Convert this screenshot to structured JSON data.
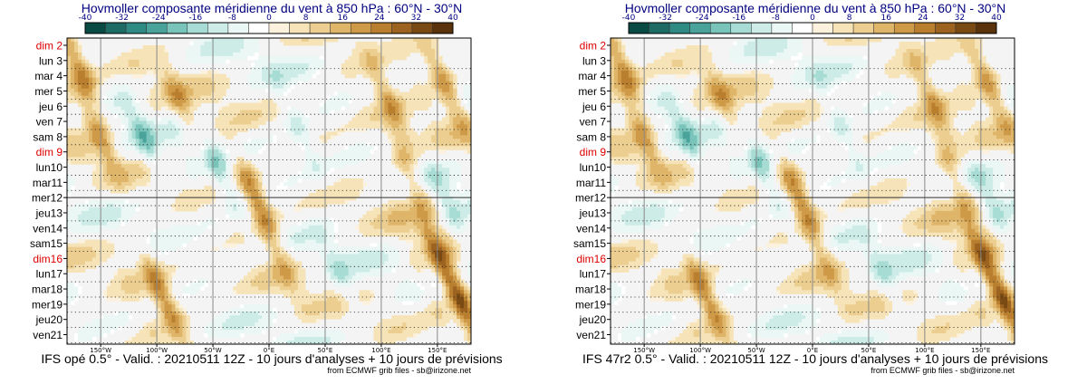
{
  "panels": [
    {
      "title": "Hovmoller composante méridienne du vent à 850 hPa : 60°N - 30°N",
      "footer": "IFS opé 0.5° - Valid. : 20210511 12Z - 10 jours d'analyses + 10 jours de prévisions",
      "credit": "from ECMWF grib files - sb@irizone.net"
    },
    {
      "title": "Hovmoller composante méridienne du vent à 850 hPa : 60°N - 30°N",
      "footer": "IFS 47r2 0.5° - Valid. : 20210511 12Z - 10 jours d'analyses + 10 jours de prévisions",
      "credit": "from ECMWF grib files - sb@irizone.net"
    }
  ],
  "chart_data": [
    {
      "type": "heatmap",
      "title": "Hovmoller composante méridienne du vent à 850 hPa : 60°N - 30°N",
      "colorbar": {
        "ticks": [
          "-40",
          "-32",
          "-24",
          "-16",
          "-8",
          "0",
          "8",
          "16",
          "24",
          "32",
          "40"
        ],
        "tick_values": [
          -40,
          -32,
          -24,
          -16,
          -8,
          0,
          8,
          16,
          24,
          32,
          40
        ],
        "colors": [
          "#0a4a44",
          "#1d6b64",
          "#2e8a82",
          "#4aa39b",
          "#78c4bb",
          "#a7dcd4",
          "#cdece7",
          "#eaf7f5",
          "#ffffff",
          "#fbf1dd",
          "#f6e3b8",
          "#eccf90",
          "#dfb56a",
          "#cf9a48",
          "#b97f2e",
          "#9c6320",
          "#7a4a15",
          "#5a330c"
        ]
      },
      "x_ticks": [
        "150°W",
        "100°W",
        "50°W",
        "0°E",
        "50°E",
        "100°E",
        "150°E"
      ],
      "x_tick_values": [
        -150,
        -100,
        -50,
        0,
        50,
        100,
        150
      ],
      "xlim": [
        -180,
        180
      ],
      "y_labels": [
        "dim 2",
        "lun 3",
        "mar 4",
        "mer 5",
        "jeu 6",
        "ven 7",
        "sam 8",
        "dim 9",
        "lun10",
        "mar11",
        "mer12",
        "jeu13",
        "ven14",
        "sam15",
        "dim16",
        "lun17",
        "mar18",
        "mer19",
        "jeu20",
        "ven21"
      ],
      "y_label_colors": [
        "#dd0000",
        "#000000",
        "#000000",
        "#000000",
        "#000000",
        "#000000",
        "#000000",
        "#dd0000",
        "#000000",
        "#000000",
        "#000000",
        "#000000",
        "#000000",
        "#000000",
        "#dd0000",
        "#000000",
        "#000000",
        "#000000",
        "#000000",
        "#000000"
      ],
      "analysis_boundary": "mer12",
      "features": [
        {
          "lon": -175,
          "day": 2,
          "dir": 1,
          "amp": 0.9
        },
        {
          "lon": -160,
          "day": 6,
          "dir": 1,
          "amp": 0.7
        },
        {
          "lon": -115,
          "day": 7,
          "dir": -1,
          "amp": 0.6
        },
        {
          "lon": -100,
          "day": 17,
          "dir": 1,
          "amp": 1.0
        },
        {
          "lon": -80,
          "day": 5,
          "dir": 1,
          "amp": 0.7
        },
        {
          "lon": -50,
          "day": 9,
          "dir": -1,
          "amp": 0.8
        },
        {
          "lon": -20,
          "day": 10,
          "dir": 1,
          "amp": 0.9
        },
        {
          "lon": 0,
          "day": 14,
          "dir": 1,
          "amp": 0.5
        },
        {
          "lon": 20,
          "day": 6,
          "dir": -1,
          "amp": 0.5
        },
        {
          "lon": 60,
          "day": 16,
          "dir": -1,
          "amp": 0.4
        },
        {
          "lon": 100,
          "day": 4,
          "dir": 1,
          "amp": 0.7
        },
        {
          "lon": 120,
          "day": 9,
          "dir": 1,
          "amp": 0.7
        },
        {
          "lon": 150,
          "day": 3,
          "dir": 1,
          "amp": 0.9
        },
        {
          "lon": 150,
          "day": 15,
          "dir": 1,
          "amp": 1.0
        },
        {
          "lon": 160,
          "day": 12,
          "dir": -1,
          "amp": 0.5
        },
        {
          "lon": 170,
          "day": 18,
          "dir": 1,
          "amp": 0.8
        }
      ]
    },
    {
      "type": "heatmap",
      "title": "Hovmoller composante méridienne du vent à 850 hPa : 60°N - 30°N",
      "colorbar": {
        "ticks": [
          "-40",
          "-32",
          "-24",
          "-16",
          "-8",
          "0",
          "8",
          "16",
          "24",
          "32",
          "40"
        ],
        "tick_values": [
          -40,
          -32,
          -24,
          -16,
          -8,
          0,
          8,
          16,
          24,
          32,
          40
        ],
        "colors": [
          "#0a4a44",
          "#1d6b64",
          "#2e8a82",
          "#4aa39b",
          "#78c4bb",
          "#a7dcd4",
          "#cdece7",
          "#eaf7f5",
          "#ffffff",
          "#fbf1dd",
          "#f6e3b8",
          "#eccf90",
          "#dfb56a",
          "#cf9a48",
          "#b97f2e",
          "#9c6320",
          "#7a4a15",
          "#5a330c"
        ]
      },
      "x_ticks": [
        "150°W",
        "100°W",
        "50°W",
        "0°E",
        "50°E",
        "100°E",
        "150°E"
      ],
      "x_tick_values": [
        -150,
        -100,
        -50,
        0,
        50,
        100,
        150
      ],
      "xlim": [
        -180,
        180
      ],
      "y_labels": [
        "dim 2",
        "lun 3",
        "mar 4",
        "mer 5",
        "jeu 6",
        "ven 7",
        "sam 8",
        "dim 9",
        "lun10",
        "mar11",
        "mer12",
        "jeu13",
        "ven14",
        "sam15",
        "dim16",
        "lun17",
        "mar18",
        "mer19",
        "jeu20",
        "ven21"
      ],
      "y_label_colors": [
        "#dd0000",
        "#000000",
        "#000000",
        "#000000",
        "#000000",
        "#000000",
        "#000000",
        "#dd0000",
        "#000000",
        "#000000",
        "#000000",
        "#000000",
        "#000000",
        "#000000",
        "#dd0000",
        "#000000",
        "#000000",
        "#000000",
        "#000000",
        "#000000"
      ],
      "analysis_boundary": "mer12",
      "features": [
        {
          "lon": -175,
          "day": 2,
          "dir": 1,
          "amp": 0.9
        },
        {
          "lon": -160,
          "day": 6,
          "dir": 1,
          "amp": 0.7
        },
        {
          "lon": -115,
          "day": 7,
          "dir": -1,
          "amp": 0.6
        },
        {
          "lon": -100,
          "day": 17,
          "dir": 1,
          "amp": 1.0
        },
        {
          "lon": -80,
          "day": 5,
          "dir": 1,
          "amp": 0.7
        },
        {
          "lon": -50,
          "day": 9,
          "dir": -1,
          "amp": 0.8
        },
        {
          "lon": -20,
          "day": 10,
          "dir": 1,
          "amp": 0.9
        },
        {
          "lon": 0,
          "day": 14,
          "dir": 1,
          "amp": 0.5
        },
        {
          "lon": 20,
          "day": 6,
          "dir": -1,
          "amp": 0.5
        },
        {
          "lon": 60,
          "day": 16,
          "dir": -1,
          "amp": 0.4
        },
        {
          "lon": 100,
          "day": 4,
          "dir": 1,
          "amp": 0.7
        },
        {
          "lon": 120,
          "day": 9,
          "dir": 1,
          "amp": 0.7
        },
        {
          "lon": 150,
          "day": 3,
          "dir": 1,
          "amp": 0.9
        },
        {
          "lon": 150,
          "day": 15,
          "dir": 1,
          "amp": 1.0
        },
        {
          "lon": 160,
          "day": 12,
          "dir": -1,
          "amp": 0.5
        },
        {
          "lon": 170,
          "day": 18,
          "dir": 1,
          "amp": 0.8
        }
      ]
    }
  ]
}
